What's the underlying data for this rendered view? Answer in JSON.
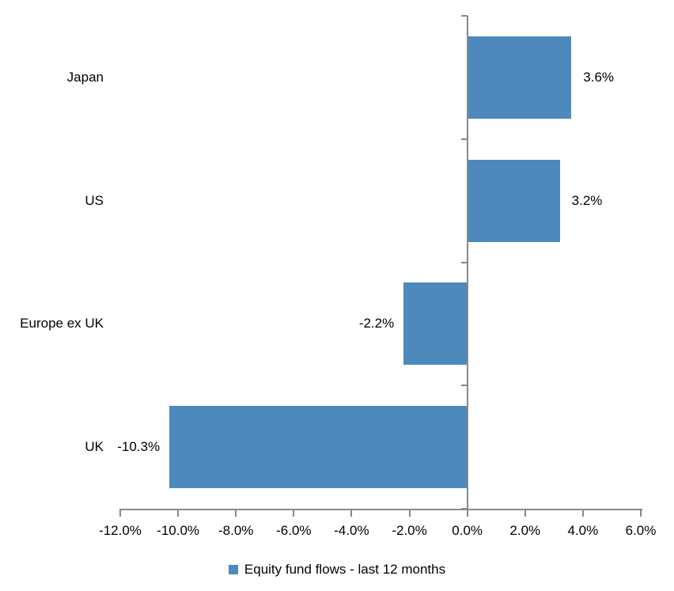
{
  "chart_data": {
    "type": "bar",
    "orientation": "horizontal",
    "title": "",
    "xlabel": "",
    "ylabel": "",
    "categories": [
      "Japan",
      "US",
      "Europe ex UK",
      "UK"
    ],
    "values": [
      3.6,
      3.2,
      -2.2,
      -10.3
    ],
    "data_labels": [
      "3.6%",
      "3.2%",
      "-2.2%",
      "-10.3%"
    ],
    "series_name": "Equity fund flows - last 12 months",
    "xlim": [
      -12,
      6
    ],
    "x_tick_step": 2,
    "x_tick_labels": [
      "-12.0%",
      "-10.0%",
      "-8.0%",
      "-6.0%",
      "-4.0%",
      "-2.0%",
      "0.0%",
      "2.0%",
      "4.0%",
      "6.0%"
    ],
    "grid": false,
    "legend_position": "bottom",
    "colors": {
      "bar": "#4E89BE",
      "axis": "#898989",
      "text": "#000000",
      "background": "#FFFFFF"
    }
  }
}
